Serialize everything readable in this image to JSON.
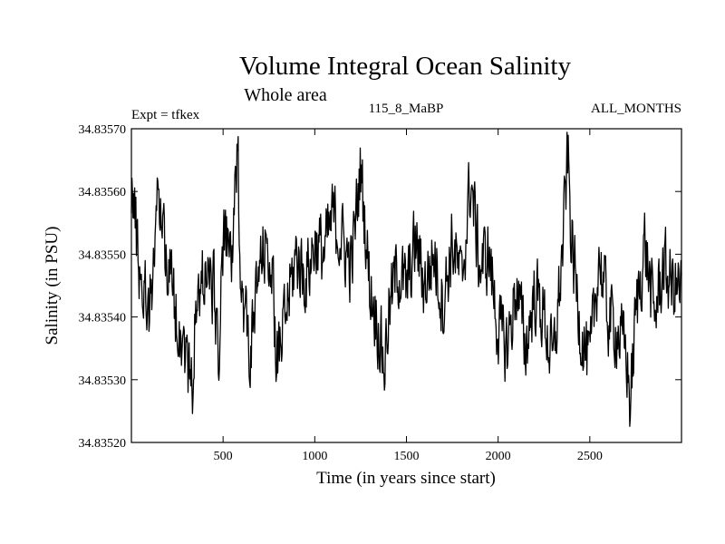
{
  "chart_data": {
    "type": "line",
    "title": "Volume Integral Ocean Salinity",
    "subtitle": "Whole area",
    "annotations": {
      "left": "Expt = tfkex",
      "center": "115_8_MaBP",
      "right": "ALL_MONTHS"
    },
    "xlabel": "Time (in years since start)",
    "ylabel": "Salinity (in PSU)",
    "xlim": [
      0,
      3000
    ],
    "ylim": [
      34.8352,
      34.8357
    ],
    "x_ticks": [
      500,
      1000,
      1500,
      2000,
      2500
    ],
    "y_ticks": [
      "34.83520",
      "34.83530",
      "34.83540",
      "34.83550",
      "34.83560",
      "34.83570"
    ],
    "grid": false,
    "series": [
      {
        "x": [
          0,
          50,
          100,
          150,
          200,
          250,
          300,
          330,
          350,
          400,
          450,
          480,
          500,
          550,
          580,
          600,
          650,
          700,
          750,
          800,
          850,
          900,
          950,
          1000,
          1050,
          1100,
          1150,
          1200,
          1250,
          1300,
          1350,
          1380,
          1400,
          1450,
          1500,
          1550,
          1600,
          1650,
          1700,
          1750,
          1800,
          1850,
          1900,
          1950,
          2000,
          2050,
          2100,
          2150,
          2200,
          2250,
          2300,
          2350,
          2380,
          2400,
          2450,
          2500,
          2550,
          2600,
          2650,
          2700,
          2720,
          2750,
          2800,
          2850,
          2900,
          2950,
          3000
        ],
        "values": [
          34.83562,
          34.83546,
          34.83542,
          34.8356,
          34.83548,
          34.8354,
          34.83534,
          34.83528,
          34.8354,
          34.83548,
          34.83544,
          34.83534,
          34.83552,
          34.8355,
          34.83565,
          34.83545,
          34.83534,
          34.83548,
          34.83552,
          34.83532,
          34.83542,
          34.8355,
          34.83546,
          34.83552,
          34.8355,
          34.83556,
          34.83552,
          34.83548,
          34.83564,
          34.83545,
          34.83538,
          34.83532,
          34.8354,
          34.83548,
          34.83544,
          34.83552,
          34.83545,
          34.8355,
          34.83542,
          34.83552,
          34.83545,
          34.83562,
          34.83548,
          34.8355,
          34.83538,
          34.83535,
          34.83545,
          34.83535,
          34.83544,
          34.8354,
          34.83532,
          34.8355,
          34.83566,
          34.83552,
          34.83538,
          34.83532,
          34.8355,
          34.8354,
          34.83538,
          34.83534,
          34.83526,
          34.8354,
          34.83552,
          34.8354,
          34.83548,
          34.83545,
          34.83544
        ]
      }
    ]
  }
}
